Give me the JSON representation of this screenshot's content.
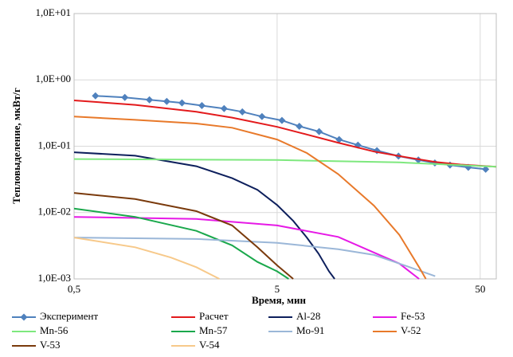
{
  "chart_data": {
    "type": "line",
    "x_label": "Время, мин",
    "y_label": "Тепловыделение, мкВт/г",
    "xscale": "log",
    "yscale": "log",
    "grid": true,
    "legend": "bottom",
    "xlim": [
      0.5,
      60
    ],
    "xticks": [
      {
        "value": 0.5,
        "label": "0,5"
      },
      5,
      50
    ],
    "ylim": [
      0.001,
      10
    ],
    "yticks": [
      {
        "value": 0.001,
        "label": "1,0E-03"
      },
      {
        "value": 0.01,
        "label": "1,0E-02"
      },
      {
        "value": 0.1,
        "label": "1,0E-01"
      },
      {
        "value": 1,
        "label": "1,0E+00"
      },
      {
        "value": 10,
        "label": "1,0E+01"
      }
    ],
    "series": [
      {
        "name": "Эксперимент",
        "color": "#4f81bd",
        "marker": "diamond",
        "x": [
          0.637,
          0.889,
          1.175,
          1.43,
          1.7,
          2.13,
          2.74,
          3.37,
          4.21,
          5.28,
          6.43,
          8.05,
          10.1,
          12.5,
          15.5,
          19.8,
          24.8,
          29.9,
          35.5,
          43.7,
          53.2
        ],
        "values": [
          0.575,
          0.545,
          0.5,
          0.474,
          0.45,
          0.41,
          0.37,
          0.33,
          0.28,
          0.245,
          0.2,
          0.166,
          0.126,
          0.104,
          0.086,
          0.071,
          0.062,
          0.056,
          0.052,
          0.048,
          0.045
        ]
      },
      {
        "name": "Расчет",
        "color": "#e31a1c",
        "x": [
          0.5,
          1,
          2,
          3,
          5,
          7,
          10,
          15,
          20,
          30,
          40,
          60
        ],
        "values": [
          0.49,
          0.42,
          0.33,
          0.27,
          0.196,
          0.15,
          0.113,
          0.083,
          0.071,
          0.058,
          0.053,
          0.049
        ]
      },
      {
        "name": "Al-28",
        "color": "#0d1f5c",
        "x": [
          0.5,
          1,
          2,
          3,
          4,
          5,
          6,
          7,
          8,
          9,
          9.6
        ],
        "values": [
          0.081,
          0.072,
          0.05,
          0.033,
          0.022,
          0.013,
          0.0075,
          0.0042,
          0.0024,
          0.0013,
          0.001
        ]
      },
      {
        "name": "Fe-53",
        "color": "#e619e6",
        "x": [
          0.5,
          2,
          5,
          10,
          15,
          20,
          25
        ],
        "values": [
          0.0086,
          0.008,
          0.0064,
          0.0043,
          0.0025,
          0.0017,
          0.001
        ]
      },
      {
        "name": "Mn-56",
        "color": "#7ee87e",
        "x": [
          0.5,
          5,
          20,
          60
        ],
        "values": [
          0.064,
          0.062,
          0.057,
          0.049
        ]
      },
      {
        "name": "Mn-57",
        "color": "#1aa84c",
        "x": [
          0.5,
          1,
          2,
          3,
          4,
          5,
          5.7
        ],
        "values": [
          0.0115,
          0.0086,
          0.0053,
          0.0032,
          0.0018,
          0.0013,
          0.001
        ]
      },
      {
        "name": "Mo-91",
        "color": "#9bb7d8",
        "x": [
          0.5,
          2,
          5,
          10,
          15,
          20,
          30
        ],
        "values": [
          0.0042,
          0.004,
          0.0035,
          0.0028,
          0.0023,
          0.0017,
          0.0011
        ]
      },
      {
        "name": "V-52",
        "color": "#e8792a",
        "x": [
          0.5,
          1,
          2,
          3,
          5,
          7,
          10,
          15,
          20,
          25,
          27
        ],
        "values": [
          0.28,
          0.25,
          0.22,
          0.19,
          0.126,
          0.079,
          0.038,
          0.0127,
          0.0046,
          0.0015,
          0.001
        ]
      },
      {
        "name": "V-53",
        "color": "#7a3a0c",
        "x": [
          0.5,
          1,
          2,
          3,
          4,
          5,
          6
        ],
        "values": [
          0.0198,
          0.016,
          0.0105,
          0.0064,
          0.003,
          0.0016,
          0.001
        ]
      },
      {
        "name": "V-54",
        "color": "#f7c98a",
        "x": [
          0.5,
          1,
          1.5,
          2,
          2.6
        ],
        "values": [
          0.0042,
          0.003,
          0.0021,
          0.0015,
          0.001
        ]
      }
    ]
  }
}
